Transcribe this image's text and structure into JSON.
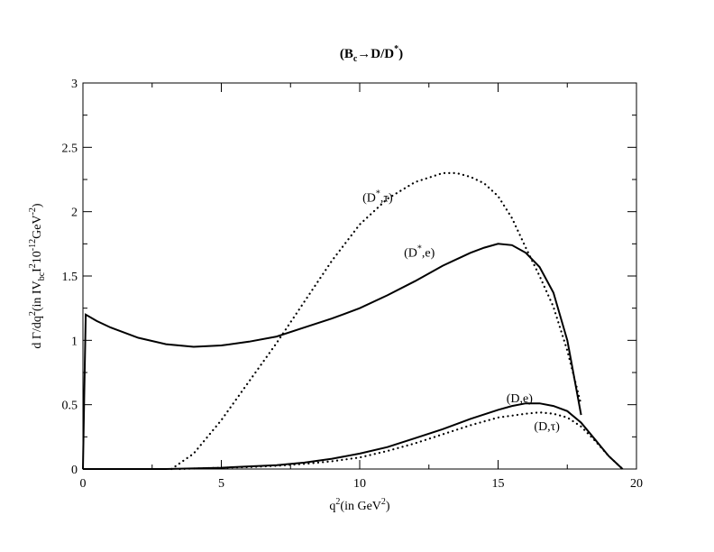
{
  "chart_data": {
    "type": "line",
    "title": "(Bc→D/D*)",
    "xlabel": "q2(in GeV2)",
    "ylabel": "d Γ/dq2(in IVbcI2 10-12GeV-2)",
    "xlim": [
      0,
      20
    ],
    "ylim": [
      0,
      3
    ],
    "x_ticks": [
      "0",
      "5",
      "10",
      "15",
      "20"
    ],
    "y_ticks": [
      "0",
      "0.5",
      "1",
      "1.5",
      "2",
      "2.5",
      "3"
    ],
    "grid": false,
    "series": [
      {
        "name": "(D*,e)",
        "style": "solid",
        "points": [
          [
            0,
            0
          ],
          [
            0.05,
            0.6
          ],
          [
            0.1,
            1.2
          ],
          [
            0.5,
            1.15
          ],
          [
            1,
            1.1
          ],
          [
            2,
            1.02
          ],
          [
            3,
            0.97
          ],
          [
            4,
            0.95
          ],
          [
            5,
            0.96
          ],
          [
            6,
            0.99
          ],
          [
            7,
            1.03
          ],
          [
            8,
            1.1
          ],
          [
            9,
            1.17
          ],
          [
            10,
            1.25
          ],
          [
            11,
            1.35
          ],
          [
            12,
            1.46
          ],
          [
            13,
            1.58
          ],
          [
            14,
            1.68
          ],
          [
            14.5,
            1.72
          ],
          [
            15,
            1.75
          ],
          [
            15.5,
            1.74
          ],
          [
            16,
            1.68
          ],
          [
            16.5,
            1.57
          ],
          [
            17,
            1.37
          ],
          [
            17.5,
            1.0
          ],
          [
            18,
            0.42
          ]
        ]
      },
      {
        "name": "(D*,τ)",
        "style": "dotted",
        "points": [
          [
            3.2,
            0
          ],
          [
            4,
            0.12
          ],
          [
            5,
            0.38
          ],
          [
            6,
            0.68
          ],
          [
            7,
            0.98
          ],
          [
            8,
            1.3
          ],
          [
            9,
            1.62
          ],
          [
            10,
            1.9
          ],
          [
            11,
            2.1
          ],
          [
            12,
            2.23
          ],
          [
            13,
            2.3
          ],
          [
            13.5,
            2.3
          ],
          [
            14,
            2.27
          ],
          [
            14.5,
            2.22
          ],
          [
            15,
            2.12
          ],
          [
            15.5,
            1.95
          ],
          [
            16,
            1.72
          ],
          [
            16.5,
            1.5
          ],
          [
            17,
            1.26
          ],
          [
            17.5,
            0.92
          ],
          [
            18,
            0.5
          ]
        ]
      },
      {
        "name": "(D,e)",
        "style": "solid",
        "points": [
          [
            0,
            0
          ],
          [
            3,
            0
          ],
          [
            5,
            0.01
          ],
          [
            6,
            0.02
          ],
          [
            7,
            0.03
          ],
          [
            8,
            0.05
          ],
          [
            9,
            0.08
          ],
          [
            10,
            0.12
          ],
          [
            11,
            0.17
          ],
          [
            12,
            0.24
          ],
          [
            13,
            0.31
          ],
          [
            14,
            0.39
          ],
          [
            15,
            0.46
          ],
          [
            15.5,
            0.49
          ],
          [
            16,
            0.51
          ],
          [
            16.5,
            0.51
          ],
          [
            17,
            0.49
          ],
          [
            17.5,
            0.45
          ],
          [
            18,
            0.36
          ],
          [
            18.5,
            0.23
          ],
          [
            19,
            0.1
          ],
          [
            19.5,
            0
          ]
        ]
      },
      {
        "name": "(D,τ)",
        "style": "dotted",
        "points": [
          [
            3.5,
            0
          ],
          [
            5,
            0.01
          ],
          [
            6,
            0.015
          ],
          [
            7,
            0.025
          ],
          [
            8,
            0.04
          ],
          [
            9,
            0.06
          ],
          [
            10,
            0.09
          ],
          [
            11,
            0.14
          ],
          [
            12,
            0.2
          ],
          [
            13,
            0.27
          ],
          [
            14,
            0.34
          ],
          [
            15,
            0.4
          ],
          [
            16,
            0.43
          ],
          [
            16.5,
            0.44
          ],
          [
            17,
            0.43
          ],
          [
            17.5,
            0.4
          ],
          [
            18,
            0.33
          ],
          [
            18.5,
            0.22
          ],
          [
            19,
            0.1
          ],
          [
            19.5,
            0
          ]
        ]
      }
    ],
    "annotations": [
      {
        "text": "(D*,τ)",
        "x": 10.1,
        "y": 2.08
      },
      {
        "text": "(D*,e)",
        "x": 11.6,
        "y": 1.65
      },
      {
        "text": "(D,e)",
        "x": 15.3,
        "y": 0.52
      },
      {
        "text": "(D,τ)",
        "x": 16.3,
        "y": 0.3
      }
    ]
  }
}
